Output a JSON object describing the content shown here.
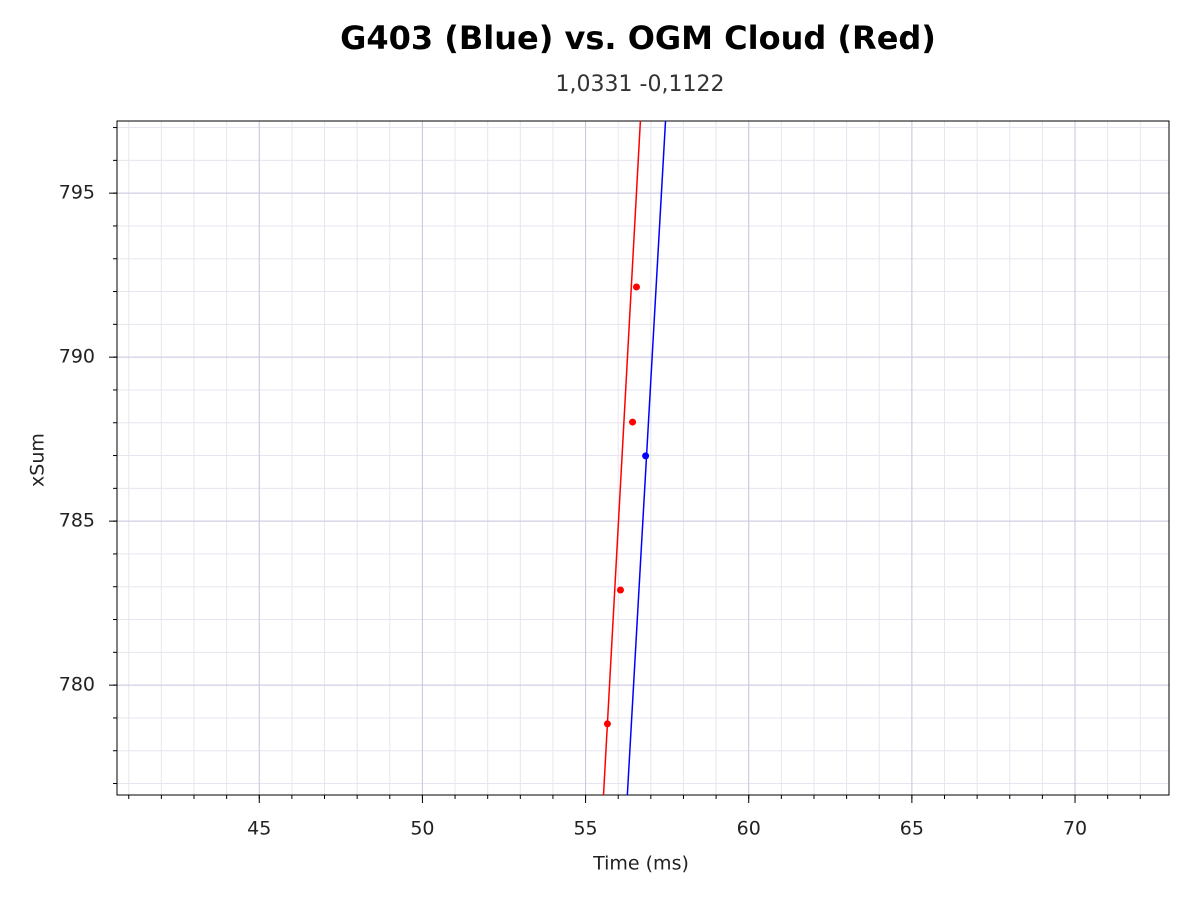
{
  "chart_data": {
    "type": "line",
    "title": "G403 (Blue) vs. OGM Cloud (Red)",
    "subtitle": "1,0331 -0,1122",
    "x_label": "Time (ms)",
    "y_label": "xSum",
    "xlim": [
      40.64,
      72.88
    ],
    "ylim": [
      776.65,
      797.2
    ],
    "xticks": [
      45,
      50,
      55,
      60,
      65,
      70
    ],
    "yticks": [
      780,
      785,
      790,
      795
    ],
    "xminor": 1,
    "yminor": 1,
    "grid": true,
    "series": [
      {
        "color": "#ff0000",
        "style": "line",
        "x": [
          55.55,
          56.68
        ],
        "values": [
          776.65,
          797.2
        ]
      },
      {
        "color": "#ff0000",
        "style": "markers",
        "x": [
          56.56,
          56.44,
          56.07,
          55.67
        ],
        "values": [
          792.14,
          788.02,
          782.9,
          778.82
        ]
      },
      {
        "color": "#0000ff",
        "style": "line",
        "x": [
          56.28,
          57.45
        ],
        "values": [
          776.65,
          797.2
        ]
      },
      {
        "color": "#0000ff",
        "style": "markers",
        "x": [
          56.84
        ],
        "values": [
          786.99
        ]
      }
    ]
  }
}
